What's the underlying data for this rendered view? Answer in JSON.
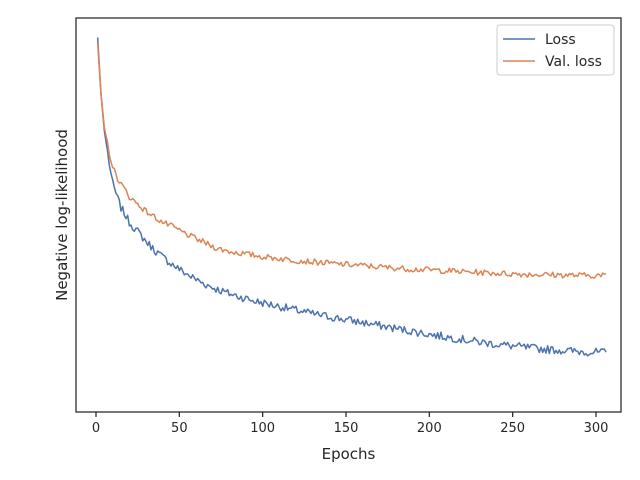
{
  "chart_data": {
    "type": "line",
    "title": "",
    "xlabel": "Epochs",
    "ylabel": "Negative log-likelihood",
    "xlim": [
      -12,
      315
    ],
    "ylim": [
      0,
      1
    ],
    "x_ticks": [
      0,
      50,
      100,
      150,
      200,
      250,
      300
    ],
    "y_ticks_shown": false,
    "grid": false,
    "legend_position": "top-right",
    "series": [
      {
        "name": "Loss",
        "color": "#4c72b0",
        "x": [
          1,
          3,
          5,
          8,
          10,
          13,
          15,
          18,
          20,
          25,
          30,
          35,
          40,
          45,
          50,
          55,
          60,
          65,
          70,
          75,
          80,
          85,
          90,
          95,
          100,
          110,
          120,
          130,
          140,
          150,
          160,
          170,
          180,
          190,
          200,
          210,
          220,
          230,
          240,
          250,
          260,
          270,
          280,
          290,
          300,
          306
        ],
        "y": [
          0.985,
          0.83,
          0.73,
          0.64,
          0.585,
          0.545,
          0.52,
          0.497,
          0.48,
          0.455,
          0.428,
          0.405,
          0.385,
          0.368,
          0.352,
          0.337,
          0.324,
          0.312,
          0.302,
          0.293,
          0.285,
          0.278,
          0.272,
          0.265,
          0.26,
          0.25,
          0.24,
          0.23,
          0.222,
          0.214,
          0.206,
          0.198,
          0.19,
          0.182,
          0.174,
          0.167,
          0.16,
          0.153,
          0.147,
          0.142,
          0.137,
          0.133,
          0.13,
          0.127,
          0.125,
          0.124
        ]
      },
      {
        "name": "Val. loss",
        "color": "#dd8452",
        "x": [
          1,
          3,
          5,
          8,
          10,
          13,
          15,
          18,
          20,
          25,
          30,
          35,
          40,
          45,
          50,
          55,
          60,
          65,
          70,
          75,
          80,
          85,
          90,
          95,
          100,
          110,
          120,
          130,
          140,
          150,
          160,
          170,
          180,
          190,
          200,
          210,
          220,
          230,
          240,
          250,
          260,
          270,
          280,
          290,
          300,
          306
        ],
        "y": [
          0.97,
          0.83,
          0.74,
          0.67,
          0.63,
          0.6,
          0.585,
          0.565,
          0.55,
          0.53,
          0.51,
          0.495,
          0.48,
          0.47,
          0.458,
          0.446,
          0.435,
          0.425,
          0.414,
          0.406,
          0.4,
          0.397,
          0.393,
          0.39,
          0.386,
          0.381,
          0.376,
          0.372,
          0.368,
          0.365,
          0.362,
          0.358,
          0.355,
          0.352,
          0.35,
          0.348,
          0.345,
          0.343,
          0.341,
          0.339,
          0.338,
          0.337,
          0.336,
          0.335,
          0.335,
          0.334
        ]
      }
    ]
  }
}
